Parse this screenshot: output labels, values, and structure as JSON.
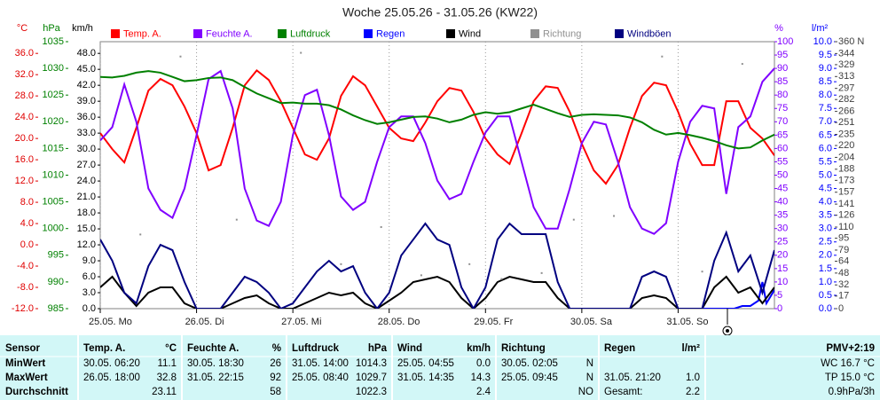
{
  "chart_data": {
    "type": "line",
    "title": "Woche 25.05.26 - 31.05.26 (KW22)",
    "xlim": [
      0,
      168
    ],
    "xticks": [
      {
        "value": 0,
        "label": "25.05. Mo"
      },
      {
        "value": 24,
        "label": "26.05. Di"
      },
      {
        "value": 48,
        "label": "27.05. Mi"
      },
      {
        "value": 72,
        "label": "28.05. Do"
      },
      {
        "value": 96,
        "label": "29.05. Fr"
      },
      {
        "value": 120,
        "label": "30.05. Sa"
      },
      {
        "value": 144,
        "label": "31.05. So"
      }
    ],
    "grid": true,
    "axes": [
      {
        "name": "°C",
        "color": "#e00000",
        "lim": [
          -12,
          38.2
        ],
        "ticks": [
          {
            "value": -12,
            "label": "-12.0"
          },
          {
            "value": -8,
            "label": "-8.0"
          },
          {
            "value": -4,
            "label": "-4.0"
          },
          {
            "value": 0,
            "label": "0.0"
          },
          {
            "value": 4,
            "label": "4.0"
          },
          {
            "value": 8,
            "label": "8.0"
          },
          {
            "value": 12,
            "label": "12.0"
          },
          {
            "value": 16,
            "label": "16.0"
          },
          {
            "value": 20,
            "label": "20.0"
          },
          {
            "value": 24,
            "label": "24.0"
          },
          {
            "value": 28,
            "label": "28.0"
          },
          {
            "value": 32,
            "label": "32.0"
          },
          {
            "value": 36,
            "label": "36.0"
          }
        ]
      },
      {
        "name": "hPa",
        "color": "#008000",
        "lim": [
          985,
          1035
        ],
        "ticks": [
          985,
          990,
          995,
          1000,
          1005,
          1010,
          1015,
          1020,
          1025,
          1030,
          1035
        ]
      },
      {
        "name": "km/h",
        "color": "#000000",
        "lim": [
          0,
          50.2
        ],
        "ticks": [
          {
            "value": 0,
            "label": "0.0"
          },
          {
            "value": 3,
            "label": "3.0"
          },
          {
            "value": 6,
            "label": "6.0"
          },
          {
            "value": 9,
            "label": "9.0"
          },
          {
            "value": 12,
            "label": "12.0"
          },
          {
            "value": 15,
            "label": "15.0"
          },
          {
            "value": 18,
            "label": "18.0"
          },
          {
            "value": 21,
            "label": "21.0"
          },
          {
            "value": 24,
            "label": "24.0"
          },
          {
            "value": 27,
            "label": "27.0"
          },
          {
            "value": 30,
            "label": "30.0"
          },
          {
            "value": 33,
            "label": "33.0"
          },
          {
            "value": 36,
            "label": "36.0"
          },
          {
            "value": 39,
            "label": "39.0"
          },
          {
            "value": 42,
            "label": "42.0"
          },
          {
            "value": 45,
            "label": "45.0"
          },
          {
            "value": 48,
            "label": "48.0"
          }
        ]
      },
      {
        "name": "%",
        "color": "#8000ff",
        "lim": [
          0,
          100
        ],
        "ticks": [
          0,
          5,
          10,
          15,
          20,
          25,
          30,
          35,
          40,
          45,
          50,
          55,
          60,
          65,
          70,
          75,
          80,
          85,
          90,
          95,
          100
        ]
      },
      {
        "name": "l/m²",
        "color": "#0000ff",
        "lim": [
          0,
          10
        ],
        "ticks": [
          {
            "value": 0,
            "label": "0.0"
          },
          {
            "value": 0.5,
            "label": "0.5"
          },
          {
            "value": 1,
            "label": "1.0"
          },
          {
            "value": 1.5,
            "label": "1.5"
          },
          {
            "value": 2,
            "label": "2.0"
          },
          {
            "value": 2.5,
            "label": "2.5"
          },
          {
            "value": 3,
            "label": "3.0"
          },
          {
            "value": 3.5,
            "label": "3.5"
          },
          {
            "value": 4,
            "label": "4.0"
          },
          {
            "value": 4.5,
            "label": "4.5"
          },
          {
            "value": 5,
            "label": "5.0"
          },
          {
            "value": 5.5,
            "label": "5.5"
          },
          {
            "value": 6,
            "label": "6.0"
          },
          {
            "value": 6.5,
            "label": "6.5"
          },
          {
            "value": 7,
            "label": "7.0"
          },
          {
            "value": 7.5,
            "label": "7.5"
          },
          {
            "value": 8,
            "label": "8.0"
          },
          {
            "value": 8.5,
            "label": "8.5"
          },
          {
            "value": 9,
            "label": "9.0"
          },
          {
            "value": 9.5,
            "label": "9.5"
          },
          {
            "value": 10,
            "label": "10.0"
          }
        ]
      },
      {
        "color": "#404040",
        "lim": [
          0,
          360
        ],
        "ticks": [
          0,
          17,
          32,
          48,
          64,
          79,
          95,
          110,
          126,
          141,
          157,
          173,
          188,
          204,
          220,
          235,
          251,
          266,
          282,
          297,
          313,
          329,
          344,
          {
            "value": 360,
            "label": "360 N"
          }
        ]
      }
    ],
    "x": [
      0,
      3,
      6,
      9,
      12,
      15,
      18,
      21,
      24,
      27,
      30,
      33,
      36,
      39,
      42,
      45,
      48,
      51,
      54,
      57,
      60,
      63,
      66,
      69,
      72,
      75,
      78,
      81,
      84,
      87,
      90,
      93,
      96,
      99,
      102,
      105,
      108,
      111,
      114,
      117,
      120,
      123,
      126,
      129,
      132,
      135,
      138,
      141,
      144,
      147,
      150,
      153,
      156,
      159,
      162,
      165,
      168
    ],
    "series": [
      {
        "name": "Temp. A.",
        "color": "#ff0000",
        "axis": 0,
        "values": [
          21,
          18,
          15.5,
          22,
          29,
          31.2,
          30,
          26,
          21,
          14,
          15,
          22,
          30,
          32.8,
          31,
          27,
          22,
          17,
          16,
          20,
          28,
          31.7,
          30,
          26,
          22,
          20,
          19.5,
          23,
          27,
          29.5,
          29,
          25,
          20,
          17,
          15.2,
          21,
          27,
          29.8,
          29.5,
          25,
          19,
          14,
          11.5,
          15,
          22,
          28,
          30.5,
          30,
          25,
          19,
          15,
          15,
          27,
          27,
          22,
          20,
          16.8
        ]
      },
      {
        "name": "Feuchte A.",
        "color": "#8000ff",
        "axis": 3,
        "values": [
          63,
          68,
          84,
          70,
          45,
          37,
          34,
          45,
          65,
          86,
          89,
          75,
          45,
          33,
          31,
          40,
          65,
          80,
          82,
          65,
          42,
          37,
          40,
          55,
          68,
          72,
          72,
          62,
          48,
          41,
          43,
          55,
          66,
          72,
          72,
          55,
          38,
          30,
          30,
          45,
          62,
          70,
          69,
          55,
          38,
          30,
          28,
          32,
          55,
          70,
          76,
          75,
          43,
          68,
          72,
          85,
          90
        ]
      },
      {
        "name": "Luftdruck",
        "color": "#008000",
        "axis": 1,
        "values": [
          1028.4,
          1028.3,
          1028.6,
          1029.2,
          1029.5,
          1029.2,
          1028.4,
          1027.6,
          1027.8,
          1028.2,
          1028.3,
          1027.8,
          1026.5,
          1025.3,
          1024.4,
          1023.5,
          1023.6,
          1023.4,
          1023.4,
          1023.1,
          1022.3,
          1021.2,
          1020.3,
          1019.6,
          1019.9,
          1020.4,
          1020.9,
          1021.0,
          1020.6,
          1019.9,
          1020.4,
          1021.3,
          1021.8,
          1021.5,
          1021.8,
          1022.5,
          1023.2,
          1022.4,
          1021.6,
          1020.9,
          1021.3,
          1021.4,
          1021.3,
          1021.2,
          1020.8,
          1019.9,
          1018.5,
          1017.6,
          1017.9,
          1017.5,
          1017.0,
          1016.4,
          1015.6,
          1015.0,
          1015.2,
          1016.5,
          1017.6
        ]
      },
      {
        "name": "Regen",
        "color": "#0000ff",
        "axis": 4,
        "x": [
          150,
          158,
          160,
          162,
          164,
          165,
          166,
          168
        ],
        "values": [
          0,
          0,
          0.1,
          0.1,
          0.3,
          1.0,
          0.2,
          0.7
        ]
      },
      {
        "name": "Wind",
        "color": "#000000",
        "axis": 2,
        "values": [
          4,
          6,
          3,
          0.5,
          3,
          4,
          4,
          1,
          0,
          0,
          0,
          1,
          2,
          2.5,
          1,
          0,
          0,
          1,
          2,
          3,
          2.5,
          3,
          1,
          0,
          1.5,
          3,
          5,
          5.5,
          6,
          5,
          2,
          0,
          2,
          5,
          6,
          5.5,
          5,
          5,
          2,
          0,
          0,
          0,
          0,
          0,
          0,
          2,
          2.5,
          2,
          0,
          0,
          0,
          4,
          6,
          3,
          4,
          1,
          4
        ]
      },
      {
        "name": "Richtung",
        "color": "#909090",
        "axis": 5,
        "kind": "dots",
        "x": [
          4,
          10,
          20,
          34,
          50,
          60,
          70,
          80,
          92,
          100,
          110,
          118,
          128,
          140,
          150,
          160
        ],
        "values": [
          50,
          100,
          340,
          120,
          345,
          60,
          110,
          45,
          60,
          40,
          48,
          120,
          125,
          340,
          50,
          330
        ]
      },
      {
        "name": "Windböen",
        "color": "#000080",
        "axis": 2,
        "values": [
          13,
          9,
          3,
          1,
          8,
          12,
          11,
          5,
          0,
          0,
          0,
          3,
          6,
          5,
          3,
          0,
          1,
          4,
          7,
          9,
          7,
          8,
          3,
          0,
          3,
          10,
          13,
          16,
          13,
          12,
          4,
          0,
          4,
          13,
          16,
          14,
          14,
          14,
          5,
          0,
          0,
          0,
          0,
          0,
          0,
          6,
          7,
          6,
          0,
          0,
          0,
          9,
          14.3,
          7,
          10,
          3,
          11
        ]
      }
    ]
  },
  "table": {
    "headers": [
      [
        "Sensor"
      ],
      [
        "Temp. A.",
        "°C"
      ],
      [
        "Feuchte A.",
        "%"
      ],
      [
        "Luftdruck",
        "hPa"
      ],
      [
        "Wind",
        "km/h"
      ],
      [
        "Richtung"
      ],
      [
        "Regen",
        "l/m²"
      ],
      [
        "PMV+2:19"
      ]
    ],
    "rows": [
      [
        "MinWert",
        [
          "30.05. 06:20",
          "11.1"
        ],
        [
          "30.05. 18:30",
          "26"
        ],
        [
          "31.05. 14:00",
          "1014.3"
        ],
        [
          "25.05. 04:55",
          "0.0"
        ],
        [
          "30.05. 02:05",
          "N"
        ],
        null,
        [
          "WC 16.7 °C"
        ]
      ],
      [
        "MaxWert",
        [
          "26.05. 18:00",
          "32.8"
        ],
        [
          "31.05. 22:15",
          "92"
        ],
        [
          "25.05. 08:40",
          "1029.7"
        ],
        [
          "31.05. 14:35",
          "14.3"
        ],
        [
          "25.05. 09:45",
          "N"
        ],
        [
          "31.05. 21:20",
          "1.0"
        ],
        [
          "TP 15.0 °C"
        ]
      ],
      [
        "Durchschnitt",
        [
          "23.11"
        ],
        [
          "58"
        ],
        [
          "1022.3"
        ],
        [
          "2.4"
        ],
        [
          "NO"
        ],
        [
          "Gesamt:",
          "2.2"
        ],
        [
          "0.9hPa/3h"
        ]
      ]
    ]
  }
}
